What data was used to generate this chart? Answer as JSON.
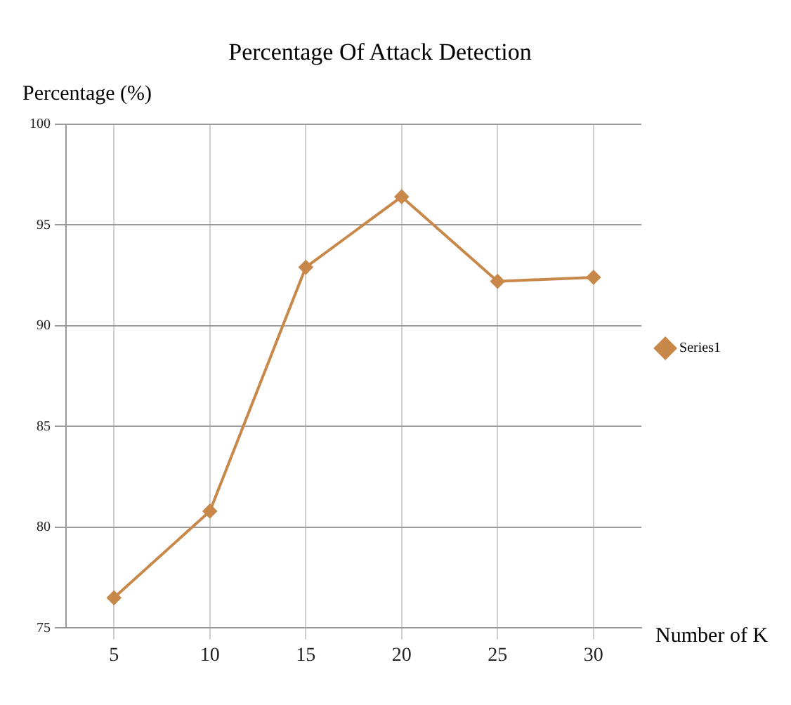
{
  "chart_data": {
    "type": "line",
    "title": "Percentage Of Attack Detection",
    "ylabel": "Percentage (%)",
    "xlabel": "Number of K",
    "categories": [
      "5",
      "10",
      "15",
      "20",
      "25",
      "30"
    ],
    "series": [
      {
        "name": "Series1",
        "color": "#c8884a",
        "values": [
          76.5,
          80.8,
          92.9,
          96.4,
          92.2,
          92.4
        ]
      }
    ],
    "ylim": [
      75,
      100
    ],
    "yticks": [
      75,
      80,
      85,
      90,
      95,
      100
    ],
    "grid": true,
    "legend": "right",
    "marker": "diamond",
    "line_style": "solid"
  }
}
